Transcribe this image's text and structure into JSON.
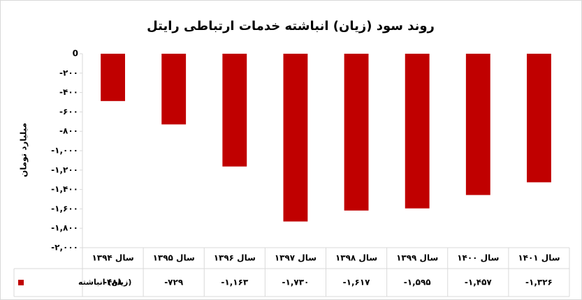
{
  "chart_data": {
    "type": "bar",
    "title": "روند سود (زیان) انباشته خدمات ارتباطی رایتل",
    "y_label": "میلیارد تومان",
    "categories": [
      "سال ۱۳۹۴",
      "سال ۱۳۹۵",
      "سال ۱۳۹۶",
      "سال ۱۳۹۷",
      "سال ۱۳۹۸",
      "سال ۱۳۹۹",
      "سال ۱۴۰۰",
      "سال ۱۴۰۱"
    ],
    "series": [
      {
        "name": "(زیان) انباشته",
        "color": "#c00000",
        "values": [
          -488,
          -729,
          -1163,
          -1730,
          -1617,
          -1595,
          -1457,
          -1326
        ],
        "value_labels": [
          "-۴۸۸",
          "-۷۲۹",
          "-۱,۱۶۳",
          "-۱,۷۳۰",
          "-۱,۶۱۷",
          "-۱,۵۹۵",
          "-۱,۴۵۷",
          "-۱,۳۲۶"
        ]
      }
    ],
    "ylim": [
      -2000,
      0
    ],
    "yticks": [
      0,
      {
        "value": -200,
        "label": "-۲۰۰"
      },
      {
        "value": -400,
        "label": "-۴۰۰"
      },
      {
        "value": -600,
        "label": "-۶۰۰"
      },
      {
        "value": -800,
        "label": "-۸۰۰"
      },
      {
        "value": -1000,
        "label": "-۱,۰۰۰"
      },
      {
        "value": -1200,
        "label": "-۱,۲۰۰"
      },
      {
        "value": -1400,
        "label": "-۱,۴۰۰"
      },
      {
        "value": -1600,
        "label": "-۱,۶۰۰"
      },
      {
        "value": -1800,
        "label": "-۱,۸۰۰"
      },
      {
        "value": -2000,
        "label": "-۲,۰۰۰"
      }
    ],
    "grid": false
  }
}
